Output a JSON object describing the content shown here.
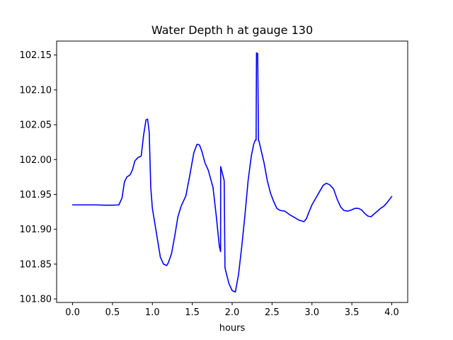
{
  "chart_data": {
    "type": "line",
    "title": "Water Depth h at gauge 130",
    "xlabel": "hours",
    "ylabel": "",
    "xlim": [
      -0.2,
      4.2
    ],
    "ylim": [
      101.795,
      102.17
    ],
    "xticks": [
      0.0,
      0.5,
      1.0,
      1.5,
      2.0,
      2.5,
      3.0,
      3.5,
      4.0
    ],
    "xtick_labels": [
      "0.0",
      "0.5",
      "1.0",
      "1.5",
      "2.0",
      "2.5",
      "3.0",
      "3.5",
      "4.0"
    ],
    "yticks": [
      101.8,
      101.85,
      101.9,
      101.95,
      102.0,
      102.05,
      102.1,
      102.15
    ],
    "ytick_labels": [
      "101.80",
      "101.85",
      "101.90",
      "101.95",
      "102.00",
      "102.05",
      "102.10",
      "102.15"
    ],
    "grid": false,
    "legend": "none",
    "series": [
      {
        "color": "#0000ff",
        "x": [
          0.0,
          0.1,
          0.2,
          0.3,
          0.4,
          0.5,
          0.58,
          0.62,
          0.65,
          0.68,
          0.72,
          0.75,
          0.78,
          0.82,
          0.86,
          0.89,
          0.92,
          0.94,
          0.96,
          0.98,
          1.0,
          1.05,
          1.1,
          1.14,
          1.18,
          1.2,
          1.24,
          1.28,
          1.32,
          1.36,
          1.42,
          1.47,
          1.52,
          1.56,
          1.59,
          1.62,
          1.66,
          1.7,
          1.76,
          1.8,
          1.84,
          1.855,
          1.856,
          1.9,
          1.91,
          1.92,
          1.96,
          2.0,
          2.04,
          2.08,
          2.12,
          2.16,
          2.2,
          2.24,
          2.27,
          2.29,
          2.3,
          2.305,
          2.32,
          2.33,
          2.335,
          2.36,
          2.4,
          2.44,
          2.48,
          2.52,
          2.56,
          2.6,
          2.66,
          2.72,
          2.78,
          2.84,
          2.9,
          2.93,
          2.96,
          3.0,
          3.05,
          3.1,
          3.14,
          3.18,
          3.22,
          3.27,
          3.32,
          3.36,
          3.4,
          3.45,
          3.5,
          3.54,
          3.58,
          3.62,
          3.66,
          3.7,
          3.74,
          3.78,
          3.82,
          3.86,
          3.9,
          3.94,
          4.0
        ],
        "y": [
          101.935,
          101.935,
          101.935,
          101.935,
          101.9345,
          101.9345,
          101.935,
          101.945,
          101.968,
          101.975,
          101.978,
          101.985,
          101.998,
          102.003,
          102.005,
          102.035,
          102.057,
          102.058,
          102.04,
          101.96,
          101.93,
          101.895,
          101.86,
          101.85,
          101.848,
          101.852,
          101.865,
          101.89,
          101.918,
          101.933,
          101.948,
          101.978,
          102.01,
          102.022,
          102.021,
          102.012,
          101.995,
          101.985,
          101.96,
          101.92,
          101.875,
          101.868,
          101.99,
          101.97,
          101.845,
          101.84,
          101.822,
          101.812,
          101.81,
          101.835,
          101.875,
          101.92,
          101.97,
          102.005,
          102.022,
          102.028,
          102.028,
          102.153,
          102.152,
          102.027,
          102.027,
          102.015,
          101.995,
          101.97,
          101.952,
          101.94,
          101.93,
          101.927,
          101.926,
          101.921,
          101.917,
          101.913,
          101.911,
          101.915,
          101.924,
          101.935,
          101.945,
          101.955,
          101.963,
          101.966,
          101.964,
          101.958,
          101.942,
          101.932,
          101.927,
          101.926,
          101.928,
          101.93,
          101.93,
          101.928,
          101.923,
          101.919,
          101.918,
          101.922,
          101.926,
          101.93,
          101.933,
          101.938,
          101.947
        ]
      }
    ]
  }
}
